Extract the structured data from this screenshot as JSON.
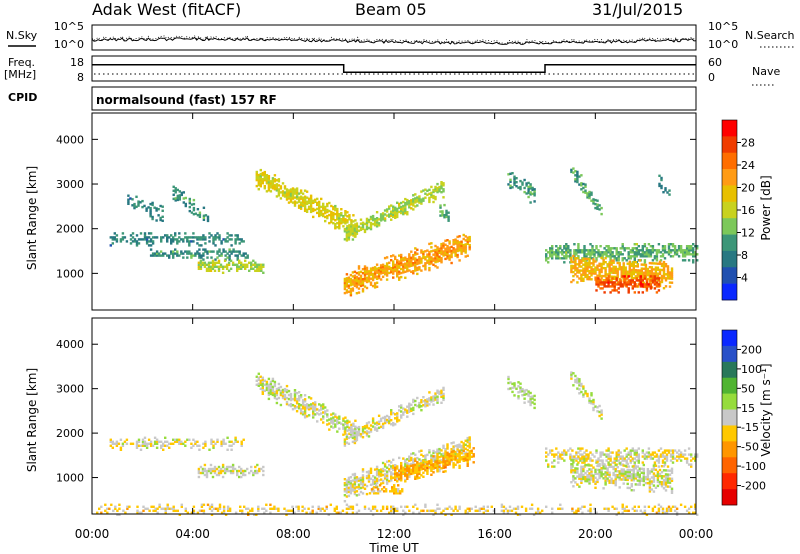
{
  "header": {
    "station": "Adak West (fitACF)",
    "beam": "Beam 05",
    "date": "31/Jul/2015"
  },
  "noise_panel": {
    "left_label": "N.Sky",
    "right_label": "N.Search",
    "left_ticks": [
      "10^5",
      "10^0"
    ],
    "right_ticks": [
      "10^5",
      "10^0"
    ]
  },
  "freq_panel": {
    "left_label_1": "Freq.",
    "left_label_2": "[MHz]",
    "left_ticks": [
      "18",
      "8"
    ],
    "right_ticks": [
      "60",
      "0"
    ],
    "right_label": "Nave",
    "freq_steps": [
      {
        "start_hour": 0,
        "end_hour": 10,
        "freq_mhz": 14.5
      },
      {
        "start_hour": 10,
        "end_hour": 18,
        "freq_mhz": 11.5
      },
      {
        "start_hour": 18,
        "end_hour": 24,
        "freq_mhz": 14.5
      }
    ]
  },
  "cpid": {
    "label": "CPID",
    "program": "normalsound (fast) 157 RF"
  },
  "power_panel": {
    "ylabel": "Slant Range [km]",
    "yticks": [
      "4000",
      "3000",
      "2000",
      "1000"
    ],
    "colorbar_label": "Power [dB]",
    "colorbar_ticks": [
      "28",
      "24",
      "20",
      "16",
      "12",
      "8",
      "4"
    ],
    "colorbar_colors": [
      "#ff0000",
      "#f03c00",
      "#ff6e00",
      "#ff9b14",
      "#e8c000",
      "#c8d21e",
      "#7cc85a",
      "#3c9678",
      "#287882",
      "#2050b0",
      "#0a28ff"
    ]
  },
  "velocity_panel": {
    "ylabel": "Slant Range [km]",
    "yticks": [
      "4000",
      "3000",
      "2000",
      "1000"
    ],
    "colorbar_label": "Velocity [m s⁻¹]",
    "colorbar_ticks": [
      "200",
      "100",
      "50",
      "15",
      "-15",
      "-50",
      "-100",
      "-200"
    ],
    "colorbar_colors": [
      "#0a28ff",
      "#2850c8",
      "#28785a",
      "#50b432",
      "#96dc3c",
      "#c8c8c8",
      "#ffc800",
      "#ff9600",
      "#ff6400",
      "#ff2800",
      "#e60000"
    ]
  },
  "time_axis": {
    "ticks": [
      "00:00",
      "04:00",
      "08:00",
      "12:00",
      "16:00",
      "20:00",
      "00:00"
    ],
    "label": "Time UT"
  },
  "chart_data": {
    "type": "heatmap",
    "title": "Adak West (fitACF)",
    "subtitle": "Beam 05",
    "xlabel": "Time UT",
    "ylabel": "Slant Range [km]",
    "xlim": [
      0,
      24
    ],
    "ylim": [
      180,
      4590
    ],
    "power_clim_db": [
      0,
      30
    ],
    "velocity_clim_ms": [
      -250,
      250
    ],
    "power_features": [
      {
        "t": 0.7,
        "t2": 6.0,
        "r": 1750,
        "w": 110,
        "v": 8,
        "d": 0.6
      },
      {
        "t": 2.3,
        "t2": 6.2,
        "r": 1420,
        "w": 100,
        "v": 9,
        "d": 0.6
      },
      {
        "t": 4.2,
        "t2": 6.8,
        "r": 1150,
        "w": 120,
        "v": 14,
        "d": 0.7
      },
      {
        "t": 6.5,
        "t2": 10.5,
        "r": 3150,
        "r2": 2000,
        "w": 200,
        "v": 16,
        "d": 0.85
      },
      {
        "t": 10.0,
        "t2": 14.0,
        "r": 1850,
        "r2": 2900,
        "w": 150,
        "v": 14,
        "d": 0.8
      },
      {
        "t": 10.0,
        "t2": 15.0,
        "r": 750,
        "r2": 1650,
        "w": 230,
        "v": 20,
        "d": 0.85
      },
      {
        "t": 3.2,
        "t2": 4.6,
        "r": 2800,
        "r2": 2200,
        "w": 150,
        "v": 9,
        "d": 0.55
      },
      {
        "t": 1.4,
        "t2": 2.8,
        "r": 2600,
        "r2": 2300,
        "w": 150,
        "v": 8,
        "d": 0.5
      },
      {
        "t": 13.8,
        "t2": 14.2,
        "r": 2400,
        "r2": 2200,
        "w": 200,
        "v": 10,
        "d": 0.5
      },
      {
        "t": 18.0,
        "t2": 24.0,
        "r": 1450,
        "w": 170,
        "v": 11,
        "d": 0.7
      },
      {
        "t": 19.0,
        "t2": 23.0,
        "r": 1100,
        "r2": 950,
        "w": 240,
        "v": 19,
        "d": 0.85
      },
      {
        "t": 20.0,
        "t2": 22.5,
        "r": 750,
        "w": 150,
        "v": 25,
        "d": 0.8
      },
      {
        "t": 16.5,
        "t2": 17.6,
        "r": 3150,
        "r2": 2700,
        "w": 170,
        "v": 9,
        "d": 0.55
      },
      {
        "t": 19.0,
        "t2": 20.2,
        "r": 3300,
        "r2": 2400,
        "w": 140,
        "v": 10,
        "d": 0.55
      },
      {
        "t": 22.5,
        "t2": 23.0,
        "r": 3000,
        "r2": 2700,
        "w": 150,
        "v": 8,
        "d": 0.5
      }
    ],
    "velocity_features": [
      {
        "t": 0.7,
        "t2": 6.0,
        "r": 1750,
        "w": 110,
        "v": -5,
        "d": 0.5
      },
      {
        "t": 4.2,
        "t2": 6.8,
        "r": 1150,
        "w": 120,
        "v": 0,
        "d": 0.6
      },
      {
        "t": 6.5,
        "t2": 10.5,
        "r": 3150,
        "r2": 2000,
        "w": 200,
        "v": 2,
        "d": 0.75
      },
      {
        "t": 10.0,
        "t2": 14.0,
        "r": 1850,
        "r2": 2900,
        "w": 150,
        "v": -10,
        "d": 0.7
      },
      {
        "t": 10.0,
        "t2": 15.0,
        "r": 750,
        "r2": 1650,
        "w": 230,
        "v": -8,
        "d": 0.75
      },
      {
        "t": 12.0,
        "t2": 15.2,
        "r": 1050,
        "r2": 1500,
        "w": 160,
        "v": -70,
        "d": 0.85
      },
      {
        "t": 11.0,
        "t2": 12.3,
        "r": 700,
        "w": 90,
        "v": -40,
        "d": 0.6
      },
      {
        "t": 18.0,
        "t2": 24.0,
        "r": 1450,
        "w": 170,
        "v": -5,
        "d": 0.6
      },
      {
        "t": 19.0,
        "t2": 23.0,
        "r": 1100,
        "r2": 950,
        "w": 240,
        "v": 0,
        "d": 0.8
      },
      {
        "t": 16.5,
        "t2": 17.6,
        "r": 3150,
        "r2": 2700,
        "w": 170,
        "v": 25,
        "d": 0.55
      },
      {
        "t": 19.0,
        "t2": 20.2,
        "r": 3300,
        "r2": 2400,
        "w": 140,
        "v": 5,
        "d": 0.5
      },
      {
        "t": 0.0,
        "t2": 24.0,
        "r": 260,
        "w": 90,
        "v": -30,
        "d": 0.35
      }
    ]
  }
}
